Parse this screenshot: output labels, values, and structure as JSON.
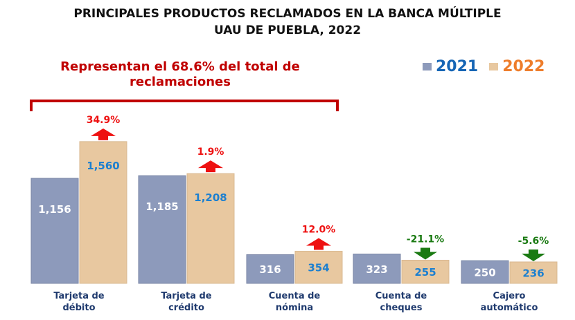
{
  "title_line1": "PRINCIPALES PRODUCTOS RECLAMADOS EN LA BANCA MÚLTIPLE",
  "title_line2": "UAU DE PUEBLA, 2022",
  "note_line1": "Representan el 68.6% del total de",
  "note_line2": "reclamaciones",
  "colors": {
    "s2021": "#8d9abb",
    "s2022": "#e8c8a0",
    "legend2021": "#1565b5",
    "legend2022": "#ee7d2b",
    "up": "#ee1111",
    "down": "#1a7a12"
  },
  "chart_data": {
    "type": "bar",
    "title": "PRINCIPALES PRODUCTOS RECLAMADOS EN LA BANCA MÚLTIPLE UAU DE PUEBLA, 2022",
    "categories": [
      [
        "Tarjeta de",
        "débito"
      ],
      [
        "Tarjeta de",
        "crédito"
      ],
      [
        "Cuenta de",
        "nómina"
      ],
      [
        "Cuenta de",
        "cheques"
      ],
      [
        "Cajero",
        "automático"
      ]
    ],
    "series": [
      {
        "name": "2021",
        "values": [
          1156,
          1185,
          316,
          323,
          250
        ],
        "labels": [
          "1,156",
          "1,185",
          "316",
          "323",
          "250"
        ]
      },
      {
        "name": "2022",
        "values": [
          1560,
          1208,
          354,
          255,
          236
        ],
        "labels": [
          "1,560",
          "1,208",
          "354",
          "255",
          "236"
        ]
      }
    ],
    "changes": [
      {
        "label": "34.9%",
        "dir": "up"
      },
      {
        "label": "1.9%",
        "dir": "up"
      },
      {
        "label": "12.0%",
        "dir": "up"
      },
      {
        "label": "-21.1%",
        "dir": "down"
      },
      {
        "label": "-5.6%",
        "dir": "down"
      }
    ],
    "legend": "top-right"
  }
}
